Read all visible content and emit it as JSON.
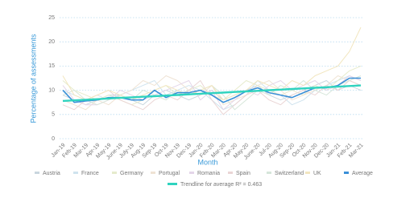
{
  "chart_data": {
    "type": "line",
    "x_label": "Month",
    "y_label": "Percentage of assessments",
    "categories": [
      "Jan-19",
      "Feb-19",
      "Mar-19",
      "Apr-19",
      "May-19",
      "June-19",
      "July-19",
      "Aug-19",
      "Sep-19",
      "Oct-19",
      "Nov-19",
      "Dec-19",
      "Jan-20",
      "Feb-20",
      "Mar-20",
      "Apr-20",
      "May-20",
      "June-20",
      "Jul-20",
      "Aug-20",
      "Sep-20",
      "Oct-20",
      "Nov-20",
      "Dec-20",
      "Jan-21",
      "Feb-21",
      "Mar-21"
    ],
    "ylim": [
      0,
      25
    ],
    "yticks": [
      0,
      5,
      10,
      15,
      20,
      25
    ],
    "grid": true,
    "series": [
      {
        "name": "Austria",
        "color": "#c9d6de",
        "values": [
          9,
          8,
          7,
          8,
          9,
          9,
          8,
          7,
          9,
          10,
          9,
          8,
          9,
          10,
          8,
          9,
          10,
          11,
          9,
          8,
          9,
          10,
          11,
          12,
          10,
          11,
          10
        ]
      },
      {
        "name": "France",
        "color": "#cfe3ee",
        "values": [
          10,
          9,
          8,
          9,
          8,
          9,
          10,
          11,
          12,
          9,
          10,
          11,
          10,
          8,
          6,
          7,
          9,
          12,
          10,
          9,
          7,
          8,
          10,
          11,
          12,
          13,
          12
        ]
      },
      {
        "name": "Germany",
        "color": "#e6ebcc",
        "values": [
          12,
          10,
          9,
          8,
          9,
          8,
          7,
          8,
          10,
          11,
          9,
          10,
          11,
          9,
          8,
          10,
          12,
          11,
          10,
          9,
          10,
          9,
          11,
          10,
          12,
          14,
          15
        ]
      },
      {
        "name": "Portugal",
        "color": "#efe3d4",
        "values": [
          8,
          7,
          6,
          8,
          7,
          9,
          10,
          12,
          11,
          13,
          12,
          10,
          9,
          11,
          7,
          8,
          9,
          11,
          12,
          10,
          8,
          9,
          10,
          11,
          13,
          12,
          11
        ]
      },
      {
        "name": "Romania",
        "color": "#e4d6e9",
        "values": [
          11,
          8,
          7,
          7,
          8,
          10,
          9,
          8,
          9,
          10,
          11,
          12,
          8,
          10,
          6,
          8,
          10,
          9,
          11,
          12,
          10,
          11,
          12,
          10,
          11,
          13,
          12
        ]
      },
      {
        "name": "Spain",
        "color": "#ead5d5",
        "values": [
          7,
          6,
          8,
          9,
          10,
          8,
          7,
          6,
          8,
          9,
          8,
          10,
          12,
          8,
          5,
          7,
          9,
          10,
          8,
          7,
          9,
          10,
          9,
          11,
          10,
          12,
          11
        ]
      },
      {
        "name": "Switzerland",
        "color": "#d6e6da",
        "values": [
          9,
          10,
          8,
          7,
          8,
          9,
          8,
          10,
          9,
          8,
          10,
          9,
          10,
          11,
          9,
          6,
          8,
          10,
          9,
          11,
          10,
          12,
          10,
          9,
          11,
          12,
          13
        ]
      },
      {
        "name": "UK",
        "color": "#f2e6bf",
        "values": [
          13,
          9,
          8,
          9,
          10,
          9,
          8,
          9,
          10,
          11,
          10,
          9,
          10,
          11,
          8,
          9,
          10,
          12,
          11,
          10,
          12,
          11,
          13,
          14,
          15,
          18,
          23
        ]
      },
      {
        "name": "Average",
        "color": "#3a8fd8",
        "values": [
          10,
          7.5,
          7.8,
          8,
          8.5,
          8.5,
          8,
          8,
          10,
          8.5,
          9.5,
          9.5,
          10,
          9,
          7.5,
          8.5,
          9.8,
          10.5,
          9.5,
          9,
          8.5,
          9.5,
          10.5,
          10.5,
          11,
          12.5,
          12.5
        ]
      }
    ],
    "trendline": {
      "name": "Trendline for average R² = 0.463",
      "color": "#2fd3bf",
      "values": [
        7.8,
        7.92,
        8.05,
        8.17,
        8.29,
        8.42,
        8.54,
        8.66,
        8.78,
        8.91,
        9.03,
        9.15,
        9.28,
        9.4,
        9.52,
        9.65,
        9.77,
        9.89,
        10.02,
        10.14,
        10.26,
        10.38,
        10.51,
        10.63,
        10.75,
        10.88,
        11.0
      ]
    }
  }
}
